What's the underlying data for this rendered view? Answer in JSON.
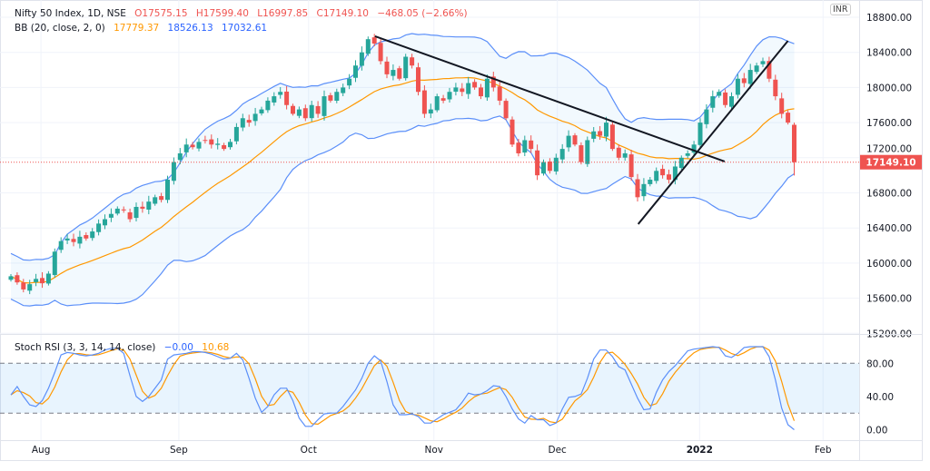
{
  "legend": {
    "symbol": "Nifty 50 Index, 1D, NSE",
    "open": "O17575.15",
    "high": "H17599.40",
    "low": "L16997.85",
    "close": "C17149.10",
    "change": "−468.05 (−2.66%)",
    "bb_label": "BB (20, close, 2, 0)",
    "bb_basis": "17779.37",
    "bb_upper": "18526.13",
    "bb_lower": "17032.61",
    "stoch_label": "Stoch RSI (3, 3, 14, 14, close)",
    "stoch_k": "−0.00",
    "stoch_d": "10.68"
  },
  "currency_badge": "INR",
  "last_price_label": "17149.10",
  "colors": {
    "up": "#26a69a",
    "down": "#ef5350",
    "bb_band": "#5b8ff9",
    "bb_basis": "#ff9800",
    "stoch_k": "#5b8ff9",
    "stoch_d": "#ff9800",
    "last": "#ef5350"
  },
  "chart_data": [
    {
      "type": "candlestick",
      "title": "Nifty 50 Index, 1D, NSE",
      "ylim": [
        15200,
        18800
      ],
      "yticks": [
        "15200.00",
        "15600.00",
        "16000.00",
        "16400.00",
        "16800.00",
        "17200.00",
        "17600.00",
        "18000.00",
        "18400.00",
        "18800.00"
      ],
      "ytick_values": [
        15200,
        15600,
        16000,
        16400,
        16800,
        17200,
        17600,
        18000,
        18400,
        18800
      ],
      "x_labels": [
        {
          "label": "Aug",
          "bar": 4.8
        },
        {
          "label": "Sep",
          "bar": 26.8
        },
        {
          "label": "Oct",
          "bar": 47.5
        },
        {
          "label": "Nov",
          "bar": 67.5
        },
        {
          "label": "Dec",
          "bar": 87.2
        },
        {
          "label": "2022",
          "bar": 109.9
        },
        {
          "label": "Feb",
          "bar": 129.6
        }
      ],
      "closes": [
        15850,
        15780,
        15700,
        15760,
        15820,
        15770,
        15880,
        16130,
        16250,
        16280,
        16240,
        16300,
        16280,
        16360,
        16450,
        16500,
        16560,
        16620,
        16600,
        16500,
        16640,
        16620,
        16700,
        16750,
        16720,
        16950,
        17150,
        17250,
        17350,
        17320,
        17380,
        17400,
        17350,
        17360,
        17300,
        17380,
        17550,
        17650,
        17600,
        17700,
        17750,
        17850,
        17900,
        17950,
        17800,
        17700,
        17750,
        17650,
        17800,
        17700,
        17900,
        17850,
        17950,
        18000,
        18100,
        18250,
        18400,
        18550,
        18500,
        18300,
        18150,
        18200,
        18100,
        18350,
        18250,
        17950,
        17700,
        17750,
        17900,
        17850,
        17950,
        18000,
        17950,
        18050,
        18000,
        17900,
        18100,
        18000,
        17850,
        17650,
        17350,
        17250,
        17400,
        17300,
        17000,
        17150,
        17050,
        17200,
        17300,
        17450,
        17350,
        17150,
        17400,
        17500,
        17450,
        17600,
        17300,
        17200,
        17250,
        16980,
        16750,
        16900,
        16950,
        17050,
        17000,
        16950,
        17100,
        17200,
        17250,
        17350,
        17600,
        17750,
        17900,
        17950,
        17800,
        17900,
        18100,
        18050,
        18200,
        18250,
        18300,
        18100,
        17900,
        17700,
        17600,
        17149.1
      ],
      "last_bar": {
        "open": 17575.15,
        "high": 17599.4,
        "low": 16997.85,
        "close": 17149.1
      },
      "indicators": {
        "bollinger": {
          "period": 20,
          "mult": 2
        }
      },
      "trendlines": [
        {
          "from": {
            "bar": 58.1,
            "price": 18583
          },
          "to": {
            "bar": 113.9,
            "price": 17157
          }
        },
        {
          "from": {
            "bar": 100.1,
            "price": 16444
          },
          "to": {
            "bar": 124,
            "price": 18531
          }
        }
      ]
    },
    {
      "type": "line",
      "title": "Stoch RSI (3, 3, 14, 14, close)",
      "ylim": [
        0,
        100
      ],
      "yticks": [
        "0.00",
        "40.00",
        "80.00"
      ],
      "ytick_values": [
        0,
        40,
        80
      ],
      "bands": [
        20,
        80
      ],
      "series": [
        {
          "name": "K",
          "values": [
            42,
            52,
            40,
            30,
            28,
            35,
            50,
            69,
            90,
            93,
            92,
            90,
            89,
            90,
            92,
            96,
            98,
            98,
            92,
            65,
            40,
            34,
            40,
            50,
            60,
            85,
            90,
            91,
            92,
            94,
            94,
            93,
            91,
            88,
            85,
            86,
            92,
            84,
            62,
            38,
            21,
            28,
            42,
            50,
            50,
            35,
            14,
            4,
            4,
            12,
            19,
            20,
            20,
            28,
            38,
            48,
            62,
            80,
            89,
            83,
            58,
            30,
            18,
            18,
            19,
            16,
            8,
            8,
            13,
            18,
            21,
            24,
            33,
            44,
            42,
            43,
            47,
            53,
            52,
            40,
            25,
            13,
            8,
            17,
            12,
            12,
            5,
            8,
            25,
            39,
            40,
            43,
            62,
            85,
            96,
            96,
            88,
            76,
            72,
            55,
            38,
            24,
            25,
            45,
            60,
            70,
            77,
            86,
            95,
            97,
            98,
            99,
            100,
            99,
            89,
            87,
            92,
            99,
            100,
            100,
            100,
            88,
            60,
            26,
            6,
            0
          ]
        },
        {
          "name": "D",
          "smoothing_of": "K",
          "period": 3
        }
      ]
    }
  ]
}
